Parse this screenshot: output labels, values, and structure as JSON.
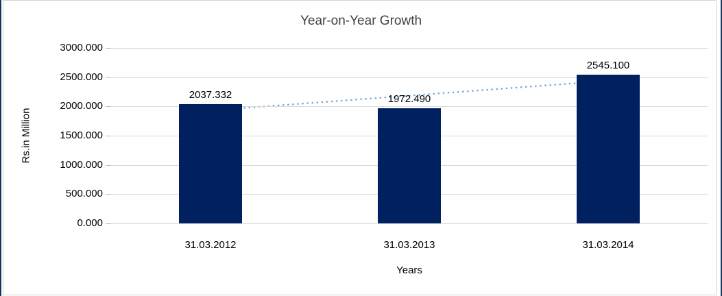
{
  "chart_data": {
    "type": "bar",
    "title": "Year-on-Year Growth",
    "categories": [
      "31.03.2012",
      "31.03.2013",
      "31.03.2014"
    ],
    "values": [
      2037.332,
      1972.49,
      2545.1
    ],
    "data_labels": [
      "2037.332",
      "1972.490",
      "2545.100"
    ],
    "xlabel": "Years",
    "ylabel": "Rs.in Million",
    "ylim": [
      0,
      3000
    ],
    "ytick_step": 500,
    "ytick_labels": [
      "3000.000",
      "2500.000",
      "2000.000",
      "1500.000",
      "1000.000",
      "500.000",
      "0.000"
    ],
    "grid": true,
    "legend": "none",
    "trendline": {
      "type": "linear",
      "style": "dotted"
    },
    "colors": {
      "bar": "#002060",
      "trendline": "#6FA8DC",
      "gridline": "#D9D9D9",
      "tickmark": "#BFBFBF",
      "title": "#404040",
      "text": "#000000",
      "frame_outer": "#17375E",
      "frame_inner": "#D3D3D3"
    }
  }
}
